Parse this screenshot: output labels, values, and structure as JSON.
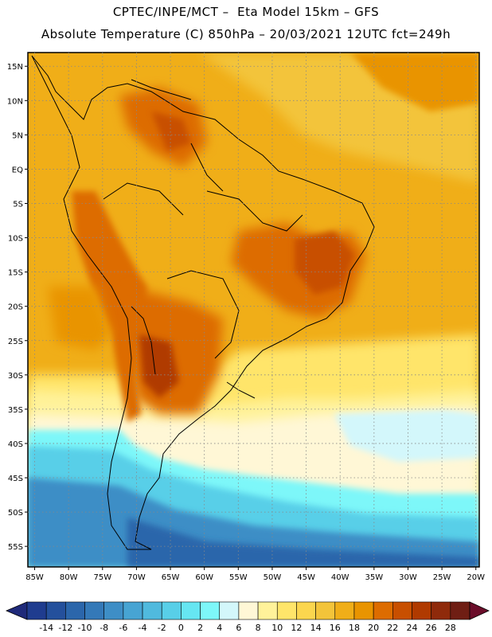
{
  "header": {
    "title_line1": "CPTEC/INPE/MCT –  Eta Model 15km – GFS",
    "title_line2": "Absolute Temperature (C) 850hPa – 20/03/2021 12UTC fct=249h"
  },
  "map": {
    "lon_labels": [
      "85W",
      "80W",
      "75W",
      "70W",
      "65W",
      "60W",
      "55W",
      "50W",
      "45W",
      "40W",
      "35W",
      "30W",
      "25W",
      "20W"
    ],
    "lat_labels": [
      "15N",
      "10N",
      "5N",
      "EQ",
      "5S",
      "10S",
      "15S",
      "20S",
      "25S",
      "30S",
      "35S",
      "40S",
      "45S",
      "50S",
      "55S"
    ],
    "lon_range": [
      -86,
      -19.5
    ],
    "lat_range": [
      17,
      -58
    ]
  },
  "colorbar": {
    "labels": [
      "-14",
      "-12",
      "-10",
      "-8",
      "-6",
      "-4",
      "-2",
      "0",
      "2",
      "4",
      "6",
      "8",
      "10",
      "12",
      "14",
      "16",
      "18",
      "20",
      "22",
      "24",
      "26",
      "28"
    ],
    "colors": [
      "#1f3c8f",
      "#24509c",
      "#2b66ab",
      "#3479b8",
      "#3e8ec6",
      "#47a4d3",
      "#50bade",
      "#58cfe8",
      "#66e6f2",
      "#7df7f9",
      "#d3f7fb",
      "#fff7d6",
      "#fff29a",
      "#ffe56a",
      "#fbd64e",
      "#f3c43a",
      "#f0ae18",
      "#e99400",
      "#dd6c00",
      "#c84f00",
      "#b03a00",
      "#8f2a0b",
      "#6f1e14"
    ],
    "low_arrow": "#1f2a7a",
    "high_arrow": "#6b0d2a"
  }
}
